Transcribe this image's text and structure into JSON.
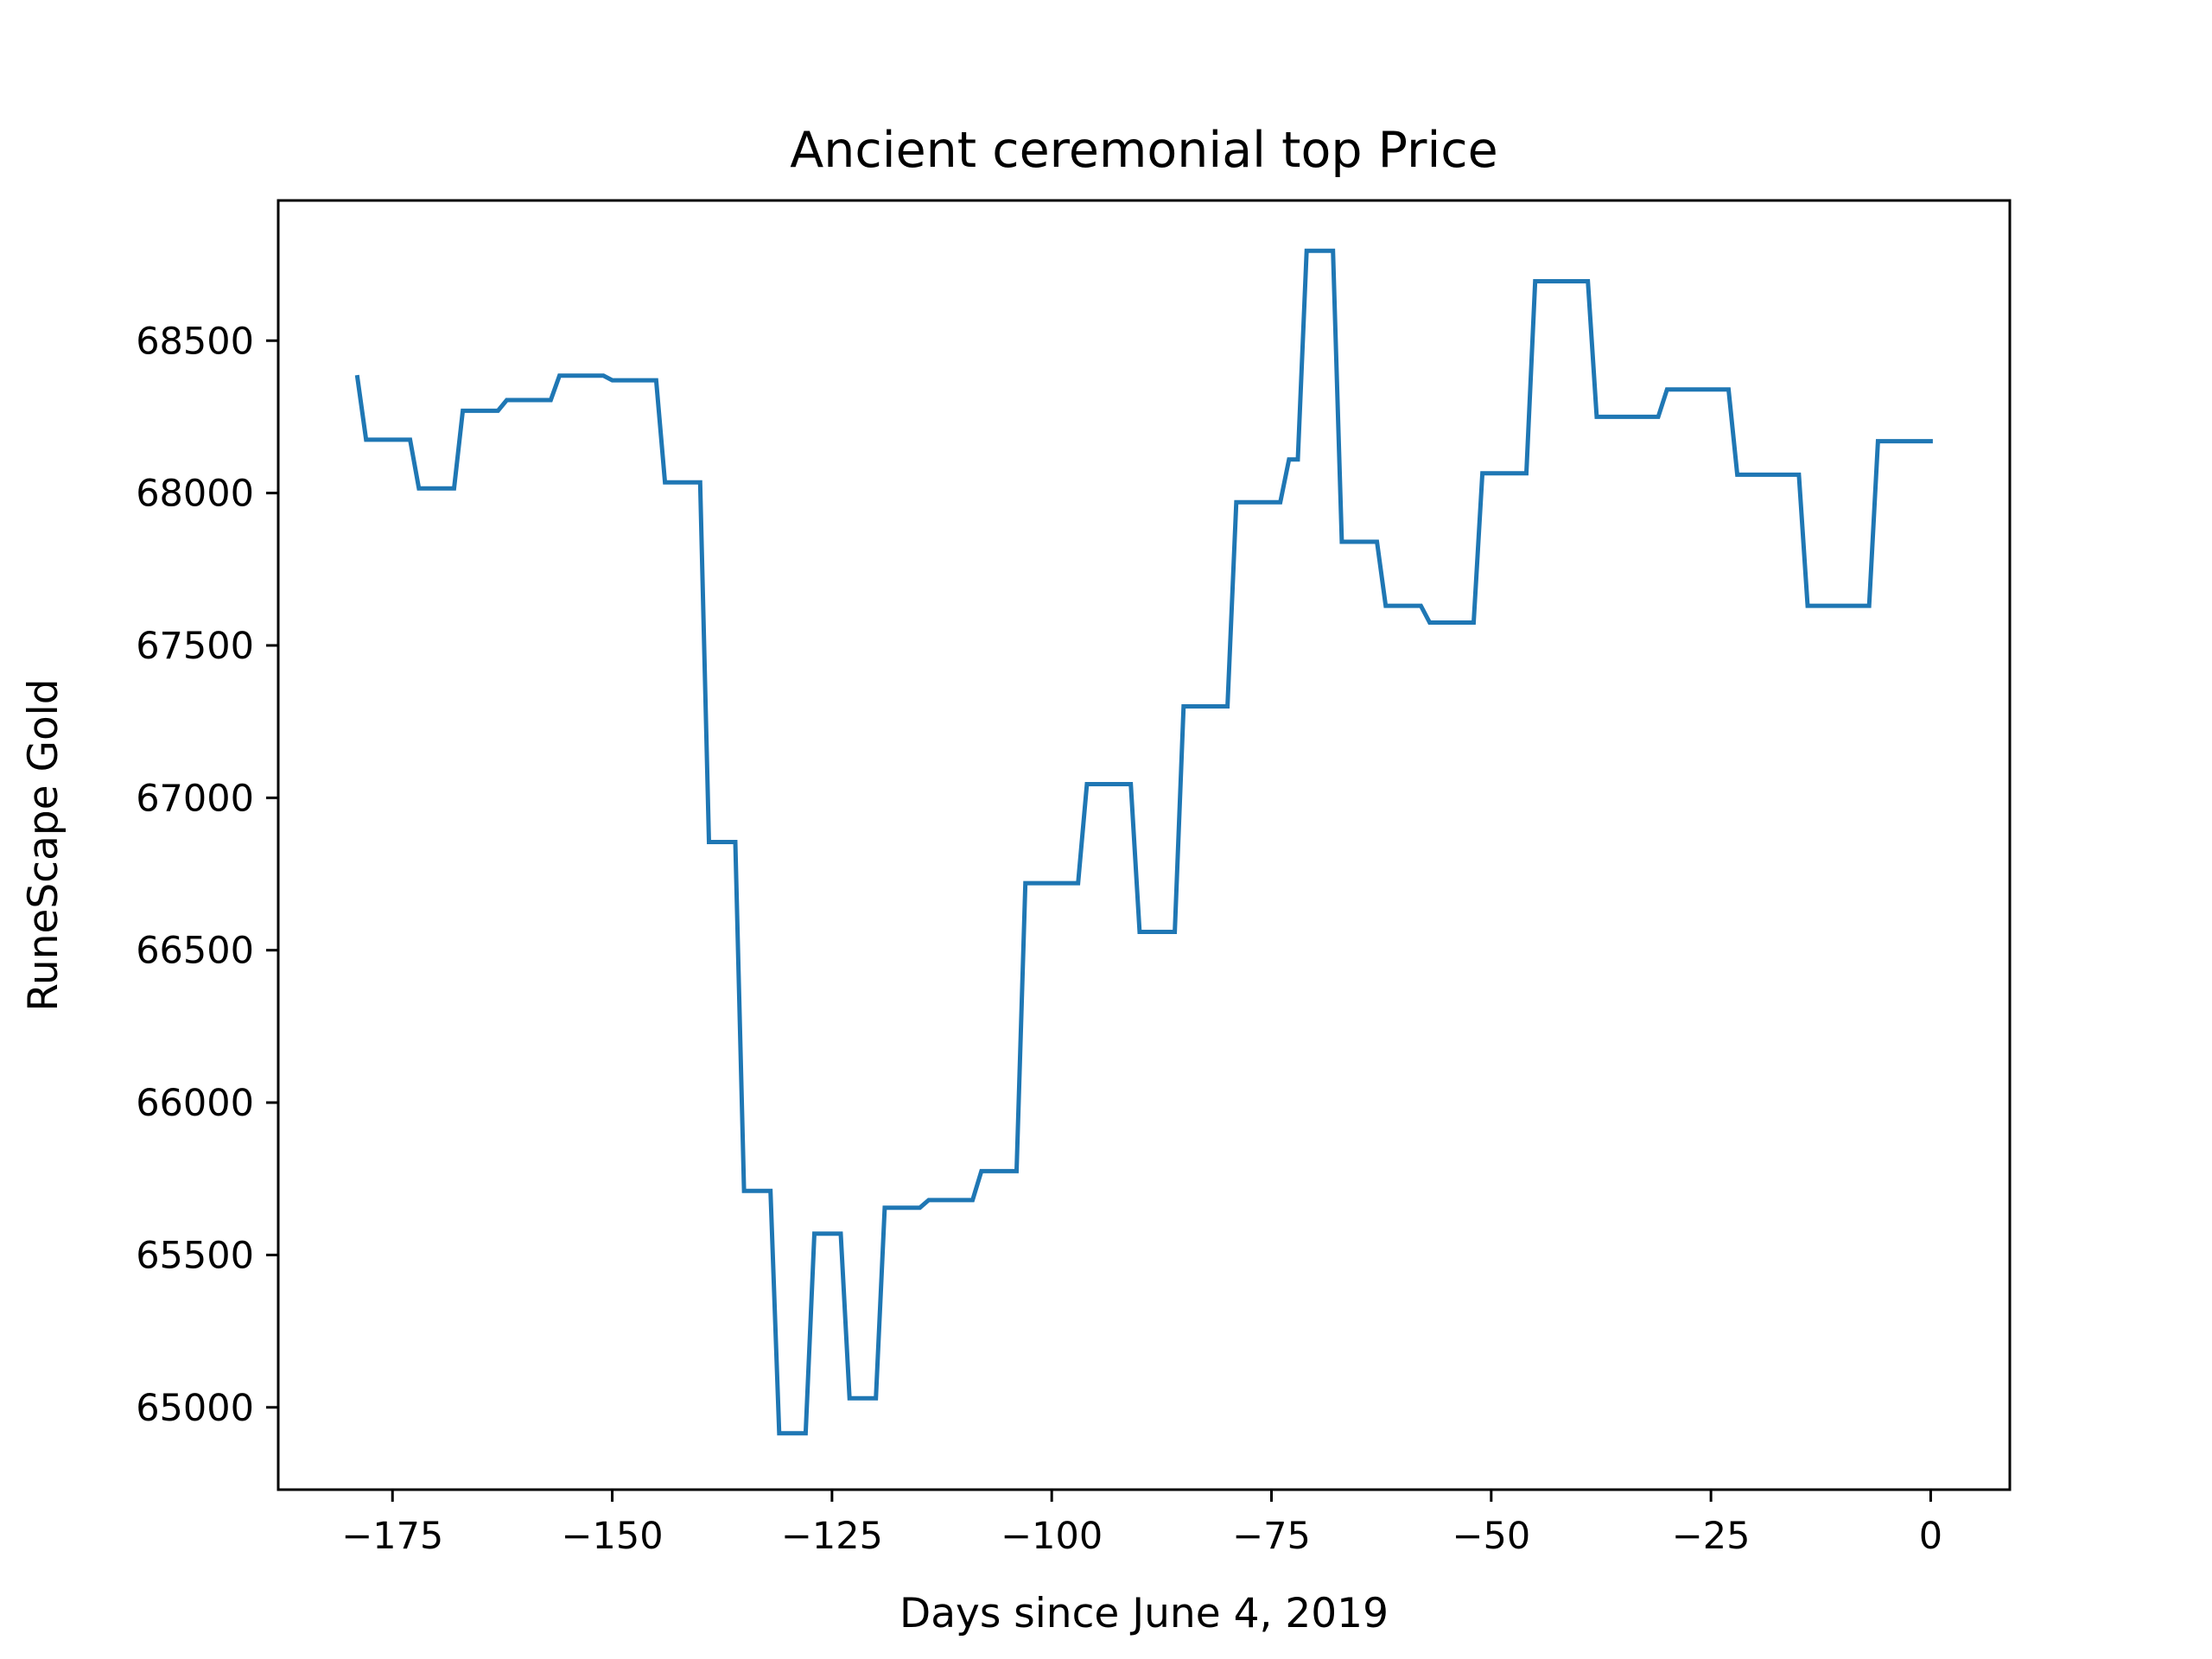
{
  "chart_data": {
    "type": "line",
    "title": "Ancient ceremonial top Price",
    "xlabel": "Days since June 4, 2019",
    "ylabel": "RuneScape Gold",
    "xlim": [
      -188,
      9
    ],
    "ylim": [
      64730,
      68960
    ],
    "xticks": [
      -175,
      -150,
      -125,
      -100,
      -75,
      -50,
      -25,
      0
    ],
    "xtick_labels": [
      "−175",
      "−150",
      "−125",
      "−100",
      "−75",
      "−50",
      "−25",
      "0"
    ],
    "yticks": [
      65000,
      65500,
      66000,
      66500,
      67000,
      67500,
      68000,
      68500
    ],
    "ytick_labels": [
      "65000",
      "65500",
      "66000",
      "66500",
      "67000",
      "67500",
      "68000",
      "68500"
    ],
    "grid": false,
    "series": [
      {
        "color": "#1f77b4",
        "x": [
          -179,
          -178,
          -173,
          -172,
          -168,
          -167,
          -163,
          -162,
          -157,
          -156,
          -151,
          -150,
          -145,
          -144,
          -140,
          -139,
          -136,
          -135,
          -132,
          -131,
          -128,
          -127,
          -124,
          -123,
          -120,
          -119,
          -115,
          -114,
          -109,
          -108,
          -104,
          -103,
          -97,
          -96,
          -91,
          -90,
          -86,
          -85,
          -80,
          -79,
          -74,
          -73,
          -72,
          -71,
          -68,
          -67,
          -63,
          -62,
          -58,
          -57,
          -52,
          -51,
          -46,
          -45,
          -39,
          -38,
          -31,
          -30,
          -23,
          -22,
          -15,
          -14,
          -7,
          -6,
          0
        ],
        "y": [
          68380,
          68175,
          68175,
          68015,
          68015,
          68270,
          68270,
          68305,
          68305,
          68385,
          68385,
          68370,
          68370,
          68035,
          68035,
          66855,
          66855,
          65710,
          65710,
          64915,
          64915,
          65570,
          65570,
          65030,
          65030,
          65655,
          65655,
          65680,
          65680,
          65775,
          65775,
          66720,
          66720,
          67045,
          67045,
          66560,
          66560,
          67300,
          67300,
          67970,
          67970,
          68110,
          68110,
          68795,
          68795,
          67840,
          67840,
          67630,
          67630,
          67575,
          67575,
          68065,
          68065,
          68695,
          68695,
          68250,
          68250,
          68340,
          68340,
          68060,
          68060,
          67630,
          67630,
          68170,
          68170
        ]
      }
    ]
  }
}
